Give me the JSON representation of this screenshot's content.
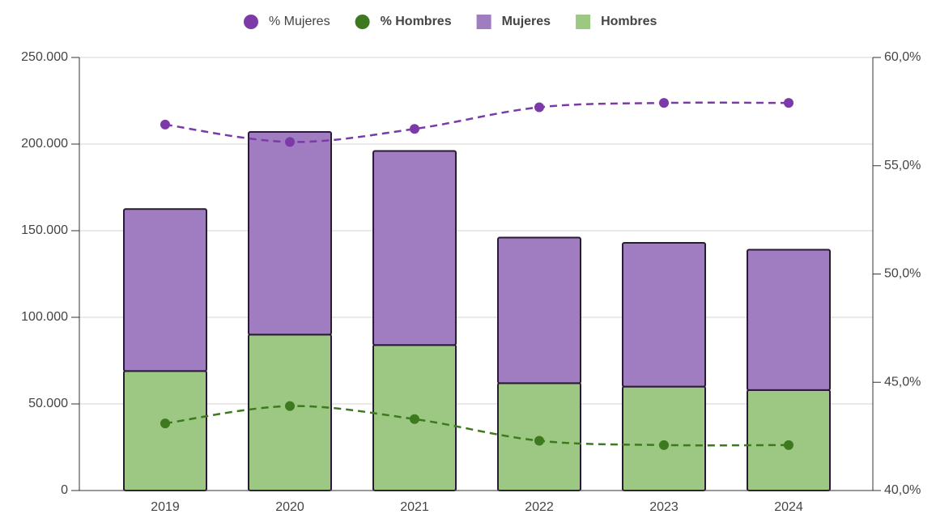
{
  "chart_data": {
    "type": "bar",
    "stacked": true,
    "categories": [
      "2019",
      "2020",
      "2021",
      "2022",
      "2023",
      "2024"
    ],
    "series": [
      {
        "name": "% Mujeres",
        "type": "line",
        "axis": "y2",
        "color": "#7b3aa8",
        "values": [
          56.9,
          56.1,
          56.7,
          57.7,
          57.9,
          57.9
        ]
      },
      {
        "name": "% Hombres",
        "type": "line",
        "axis": "y2",
        "color": "#3d7a1f",
        "values": [
          43.1,
          43.9,
          43.3,
          42.3,
          42.1,
          42.1
        ]
      },
      {
        "name": "Mujeres",
        "type": "bar",
        "color": "#a07cc0",
        "values": [
          93500,
          117000,
          112000,
          84000,
          83000,
          81000
        ]
      },
      {
        "name": "Hombres",
        "type": "bar",
        "color": "#9dc883",
        "values": [
          69000,
          90000,
          84000,
          62000,
          60000,
          58000
        ]
      }
    ],
    "ylim": [
      0,
      250000
    ],
    "yticks": [
      0,
      {
        "value": 50000,
        "label": "50.000"
      },
      {
        "value": 100000,
        "label": "100.000"
      },
      {
        "value": 150000,
        "label": "150.000"
      },
      {
        "value": 200000,
        "label": "200.000"
      },
      {
        "value": 250000,
        "label": "250.000"
      }
    ],
    "y2lim": [
      40,
      60
    ],
    "y2ticks": [
      {
        "value": 40,
        "label": "40,0%"
      },
      {
        "value": 45,
        "label": "45,0%"
      },
      {
        "value": 50,
        "label": "50,0%"
      },
      {
        "value": 55,
        "label": "55,0%"
      },
      {
        "value": 60,
        "label": "60,0%"
      }
    ],
    "grid": true,
    "legend": "top"
  }
}
